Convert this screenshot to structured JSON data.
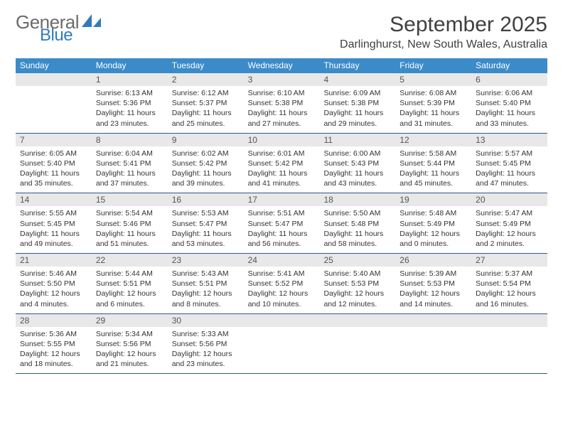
{
  "logo": {
    "text_general": "General",
    "text_blue": "Blue",
    "sail_color": "#2f7bbf",
    "general_color": "#6b6b6b"
  },
  "header": {
    "month_title": "September 2025",
    "subtitle": "Darlinghurst, New South Wales, Australia"
  },
  "calendar": {
    "type": "table",
    "header_bg": "#3b8bc9",
    "header_text_color": "#ffffff",
    "daynum_bg": "#e8e8e8",
    "row_border_color": "#2b5a86",
    "background_color": "#ffffff",
    "columns": [
      "Sunday",
      "Monday",
      "Tuesday",
      "Wednesday",
      "Thursday",
      "Friday",
      "Saturday"
    ],
    "weeks": [
      [
        {
          "day": "",
          "sunrise": "",
          "sunset": "",
          "daylight": ""
        },
        {
          "day": "1",
          "sunrise": "Sunrise: 6:13 AM",
          "sunset": "Sunset: 5:36 PM",
          "daylight": "Daylight: 11 hours and 23 minutes."
        },
        {
          "day": "2",
          "sunrise": "Sunrise: 6:12 AM",
          "sunset": "Sunset: 5:37 PM",
          "daylight": "Daylight: 11 hours and 25 minutes."
        },
        {
          "day": "3",
          "sunrise": "Sunrise: 6:10 AM",
          "sunset": "Sunset: 5:38 PM",
          "daylight": "Daylight: 11 hours and 27 minutes."
        },
        {
          "day": "4",
          "sunrise": "Sunrise: 6:09 AM",
          "sunset": "Sunset: 5:38 PM",
          "daylight": "Daylight: 11 hours and 29 minutes."
        },
        {
          "day": "5",
          "sunrise": "Sunrise: 6:08 AM",
          "sunset": "Sunset: 5:39 PM",
          "daylight": "Daylight: 11 hours and 31 minutes."
        },
        {
          "day": "6",
          "sunrise": "Sunrise: 6:06 AM",
          "sunset": "Sunset: 5:40 PM",
          "daylight": "Daylight: 11 hours and 33 minutes."
        }
      ],
      [
        {
          "day": "7",
          "sunrise": "Sunrise: 6:05 AM",
          "sunset": "Sunset: 5:40 PM",
          "daylight": "Daylight: 11 hours and 35 minutes."
        },
        {
          "day": "8",
          "sunrise": "Sunrise: 6:04 AM",
          "sunset": "Sunset: 5:41 PM",
          "daylight": "Daylight: 11 hours and 37 minutes."
        },
        {
          "day": "9",
          "sunrise": "Sunrise: 6:02 AM",
          "sunset": "Sunset: 5:42 PM",
          "daylight": "Daylight: 11 hours and 39 minutes."
        },
        {
          "day": "10",
          "sunrise": "Sunrise: 6:01 AM",
          "sunset": "Sunset: 5:42 PM",
          "daylight": "Daylight: 11 hours and 41 minutes."
        },
        {
          "day": "11",
          "sunrise": "Sunrise: 6:00 AM",
          "sunset": "Sunset: 5:43 PM",
          "daylight": "Daylight: 11 hours and 43 minutes."
        },
        {
          "day": "12",
          "sunrise": "Sunrise: 5:58 AM",
          "sunset": "Sunset: 5:44 PM",
          "daylight": "Daylight: 11 hours and 45 minutes."
        },
        {
          "day": "13",
          "sunrise": "Sunrise: 5:57 AM",
          "sunset": "Sunset: 5:45 PM",
          "daylight": "Daylight: 11 hours and 47 minutes."
        }
      ],
      [
        {
          "day": "14",
          "sunrise": "Sunrise: 5:55 AM",
          "sunset": "Sunset: 5:45 PM",
          "daylight": "Daylight: 11 hours and 49 minutes."
        },
        {
          "day": "15",
          "sunrise": "Sunrise: 5:54 AM",
          "sunset": "Sunset: 5:46 PM",
          "daylight": "Daylight: 11 hours and 51 minutes."
        },
        {
          "day": "16",
          "sunrise": "Sunrise: 5:53 AM",
          "sunset": "Sunset: 5:47 PM",
          "daylight": "Daylight: 11 hours and 53 minutes."
        },
        {
          "day": "17",
          "sunrise": "Sunrise: 5:51 AM",
          "sunset": "Sunset: 5:47 PM",
          "daylight": "Daylight: 11 hours and 56 minutes."
        },
        {
          "day": "18",
          "sunrise": "Sunrise: 5:50 AM",
          "sunset": "Sunset: 5:48 PM",
          "daylight": "Daylight: 11 hours and 58 minutes."
        },
        {
          "day": "19",
          "sunrise": "Sunrise: 5:48 AM",
          "sunset": "Sunset: 5:49 PM",
          "daylight": "Daylight: 12 hours and 0 minutes."
        },
        {
          "day": "20",
          "sunrise": "Sunrise: 5:47 AM",
          "sunset": "Sunset: 5:49 PM",
          "daylight": "Daylight: 12 hours and 2 minutes."
        }
      ],
      [
        {
          "day": "21",
          "sunrise": "Sunrise: 5:46 AM",
          "sunset": "Sunset: 5:50 PM",
          "daylight": "Daylight: 12 hours and 4 minutes."
        },
        {
          "day": "22",
          "sunrise": "Sunrise: 5:44 AM",
          "sunset": "Sunset: 5:51 PM",
          "daylight": "Daylight: 12 hours and 6 minutes."
        },
        {
          "day": "23",
          "sunrise": "Sunrise: 5:43 AM",
          "sunset": "Sunset: 5:51 PM",
          "daylight": "Daylight: 12 hours and 8 minutes."
        },
        {
          "day": "24",
          "sunrise": "Sunrise: 5:41 AM",
          "sunset": "Sunset: 5:52 PM",
          "daylight": "Daylight: 12 hours and 10 minutes."
        },
        {
          "day": "25",
          "sunrise": "Sunrise: 5:40 AM",
          "sunset": "Sunset: 5:53 PM",
          "daylight": "Daylight: 12 hours and 12 minutes."
        },
        {
          "day": "26",
          "sunrise": "Sunrise: 5:39 AM",
          "sunset": "Sunset: 5:53 PM",
          "daylight": "Daylight: 12 hours and 14 minutes."
        },
        {
          "day": "27",
          "sunrise": "Sunrise: 5:37 AM",
          "sunset": "Sunset: 5:54 PM",
          "daylight": "Daylight: 12 hours and 16 minutes."
        }
      ],
      [
        {
          "day": "28",
          "sunrise": "Sunrise: 5:36 AM",
          "sunset": "Sunset: 5:55 PM",
          "daylight": "Daylight: 12 hours and 18 minutes."
        },
        {
          "day": "29",
          "sunrise": "Sunrise: 5:34 AM",
          "sunset": "Sunset: 5:56 PM",
          "daylight": "Daylight: 12 hours and 21 minutes."
        },
        {
          "day": "30",
          "sunrise": "Sunrise: 5:33 AM",
          "sunset": "Sunset: 5:56 PM",
          "daylight": "Daylight: 12 hours and 23 minutes."
        },
        {
          "day": "",
          "sunrise": "",
          "sunset": "",
          "daylight": ""
        },
        {
          "day": "",
          "sunrise": "",
          "sunset": "",
          "daylight": ""
        },
        {
          "day": "",
          "sunrise": "",
          "sunset": "",
          "daylight": ""
        },
        {
          "day": "",
          "sunrise": "",
          "sunset": "",
          "daylight": ""
        }
      ]
    ]
  }
}
